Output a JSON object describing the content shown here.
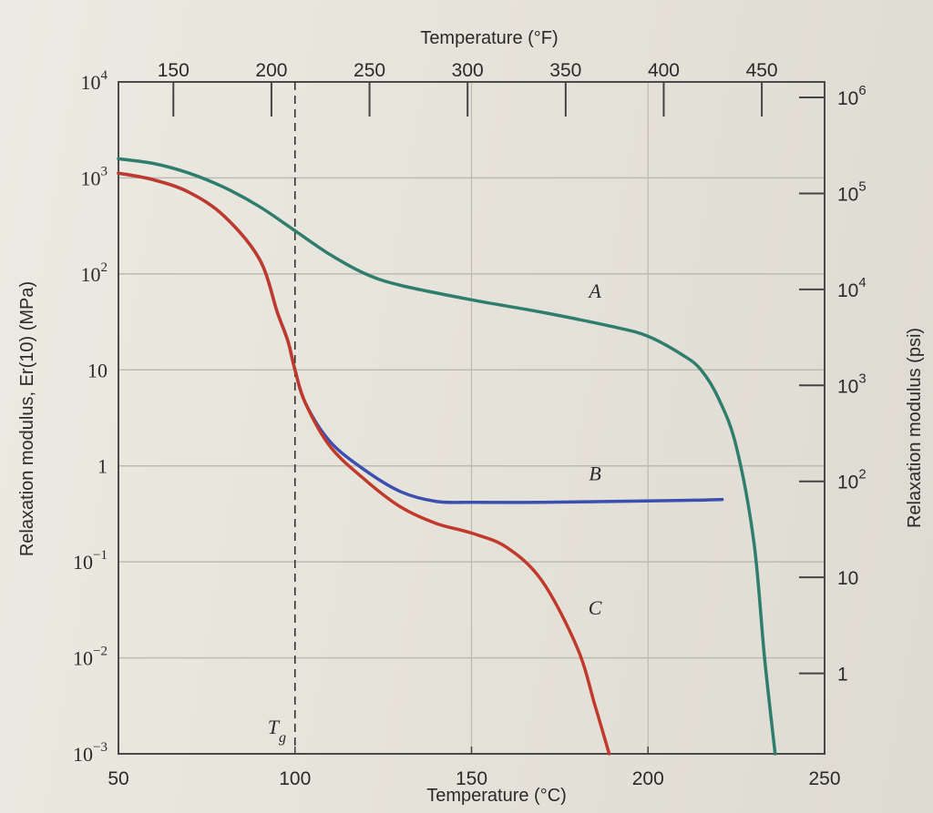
{
  "chart_data": {
    "type": "line",
    "x_top_label": "Temperature (°F)",
    "x_bottom_label": "Temperature (°C)",
    "y_left_label": "Relaxation modulus, Er(10) (MPa)",
    "y_right_label": "Relaxation modulus (psi)",
    "x_range": [
      50,
      250
    ],
    "x_ticks": [
      "50",
      "100",
      "150",
      "200",
      "250"
    ],
    "x_top_ticks": [
      "150",
      "200",
      "250",
      "300",
      "350",
      "400",
      "450"
    ],
    "y_log_range": [
      -3,
      4
    ],
    "y_ticks": [
      {
        "base": "10",
        "exp": "4"
      },
      {
        "base": "10",
        "exp": "3"
      },
      {
        "base": "10",
        "exp": "2"
      },
      {
        "base": "10",
        "exp": ""
      },
      {
        "base": "1",
        "exp": ""
      },
      {
        "base": "10",
        "exp": "−1"
      },
      {
        "base": "10",
        "exp": "−2"
      },
      {
        "base": "10",
        "exp": "−3"
      }
    ],
    "y_right_ticks": [
      {
        "base": "10",
        "exp": "6"
      },
      {
        "base": "10",
        "exp": "5"
      },
      {
        "base": "10",
        "exp": "4"
      },
      {
        "base": "10",
        "exp": "3"
      },
      {
        "base": "10",
        "exp": "2"
      },
      {
        "base": "10",
        "exp": ""
      },
      {
        "base": "1",
        "exp": ""
      }
    ],
    "tg_label": "T",
    "tg_sub": "g",
    "tg_value": 100,
    "series": [
      {
        "name": "A",
        "color": "#2f7d6d",
        "x": [
          50,
          60,
          70,
          80,
          90,
          100,
          110,
          120,
          130,
          150,
          170,
          190,
          200,
          210,
          215,
          220,
          225,
          230,
          233,
          236
        ],
        "y": [
          3.2,
          3.15,
          3.05,
          2.9,
          2.7,
          2.45,
          2.2,
          2.0,
          1.88,
          1.73,
          1.6,
          1.45,
          1.35,
          1.15,
          1.0,
          0.7,
          0.2,
          -0.8,
          -2.0,
          -3.0
        ]
      },
      {
        "name": "B",
        "color": "#3b4fb0",
        "x": [
          50,
          60,
          70,
          80,
          90,
          95,
          98,
          100,
          103,
          110,
          120,
          130,
          140,
          150,
          170,
          190,
          210,
          221
        ],
        "y": [
          3.05,
          2.98,
          2.85,
          2.6,
          2.15,
          1.6,
          1.3,
          1.0,
          0.65,
          0.25,
          -0.05,
          -0.27,
          -0.37,
          -0.38,
          -0.38,
          -0.37,
          -0.36,
          -0.35
        ]
      },
      {
        "name": "C",
        "color": "#c0392b",
        "x": [
          50,
          60,
          70,
          80,
          90,
          95,
          98,
          100,
          103,
          110,
          120,
          130,
          140,
          150,
          160,
          170,
          180,
          185,
          189
        ],
        "y": [
          3.05,
          2.98,
          2.85,
          2.6,
          2.15,
          1.6,
          1.3,
          1.0,
          0.65,
          0.2,
          -0.15,
          -0.43,
          -0.6,
          -0.7,
          -0.85,
          -1.2,
          -1.9,
          -2.5,
          -3.0
        ]
      }
    ],
    "annotations": [
      {
        "text": "A",
        "x": 185,
        "y": 1.75
      },
      {
        "text": "B",
        "x": 185,
        "y": -0.15
      },
      {
        "text": "C",
        "x": 185,
        "y": -1.55
      }
    ]
  }
}
